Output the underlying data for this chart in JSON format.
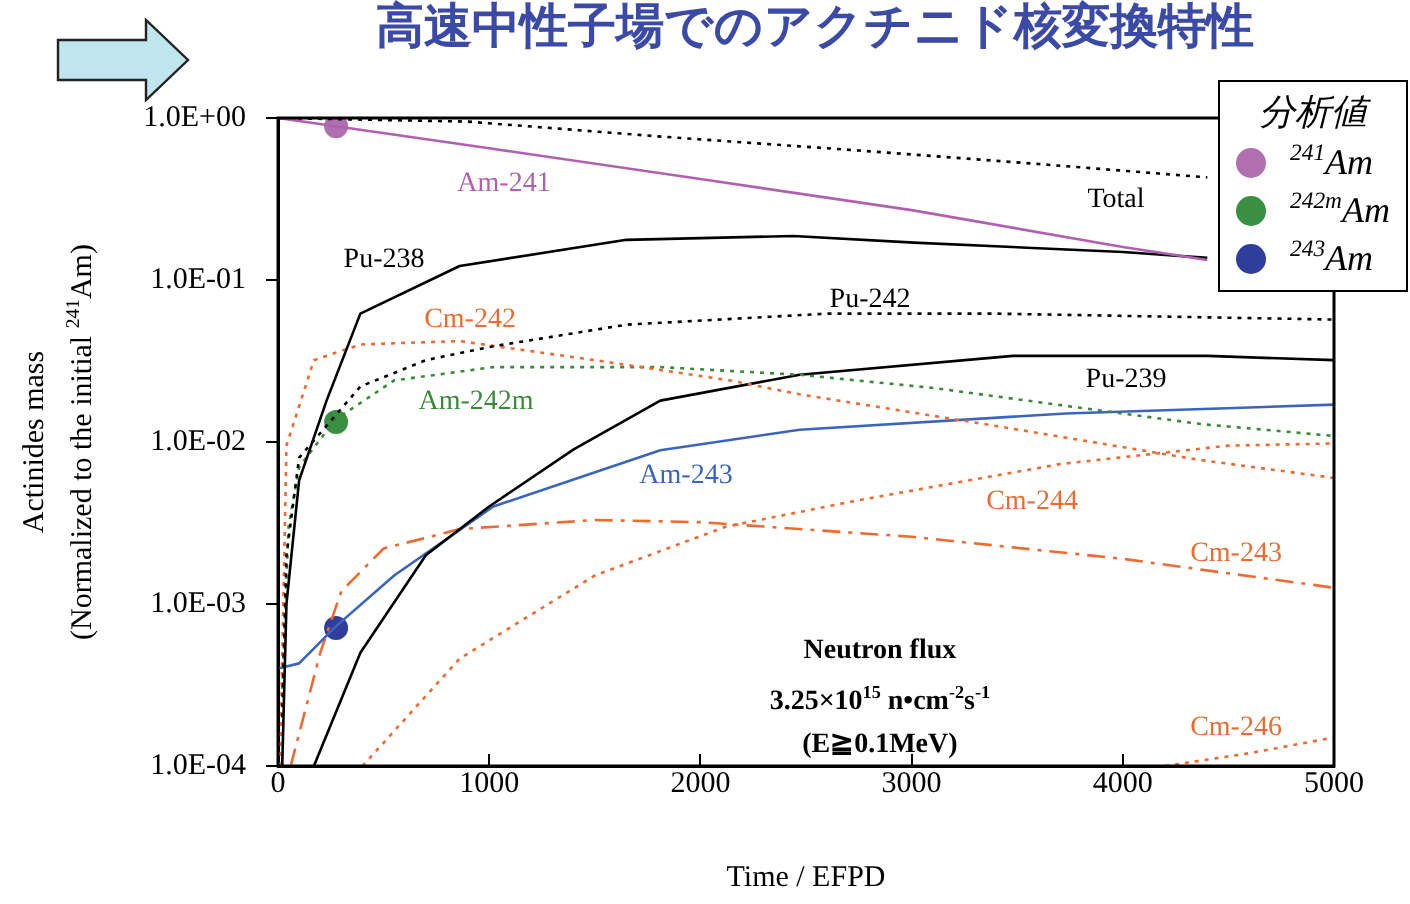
{
  "chart_data": {
    "type": "line",
    "title": "高速中性子場でのアクチニド核変換特性",
    "xlabel": "Time / EFPD",
    "ylabel": "Actinides mass\n(Normalized to the initial $^{241}$Am)",
    "legend_title": "分析値",
    "legend": "top right",
    "log": "y",
    "xlim": [
      0,
      5000
    ],
    "xticks": [
      0,
      1000,
      2000,
      3000,
      4000,
      5000
    ],
    "ylim": [
      0.0001,
      1
    ],
    "yticks": [
      {
        "value": 0.0001,
        "label": "1.0E-04"
      },
      {
        "value": 0.001,
        "label": "1.0E-03"
      },
      {
        "value": 0.01,
        "label": "1.0E-02"
      },
      {
        "value": 0.1,
        "label": "1.0E-01"
      },
      {
        "value": 1,
        "label": "1.0E+00"
      }
    ],
    "series": [
      {
        "name": "Am-241",
        "color": "#b060b0",
        "line_style": "solid",
        "x": [
          0,
          1000,
          2000,
          3000,
          4000,
          4400
        ],
        "values": [
          1.0,
          0.65,
          0.42,
          0.27,
          0.16,
          0.133
        ]
      },
      {
        "name": "Total",
        "color": "#000000",
        "line_style": "dotted",
        "x": [
          0,
          900,
          1800,
          2750,
          3600,
          4400
        ],
        "values": [
          1.0,
          0.95,
          0.77,
          0.63,
          0.52,
          0.43
        ]
      },
      {
        "name": "Pu-238",
        "color": "#000000",
        "line_style": "solid",
        "x": [
          20,
          40,
          100,
          230,
          390,
          860,
          1650,
          2440,
          3010,
          4000,
          4400
        ],
        "values": [
          0.0001,
          0.001,
          0.0058,
          0.018,
          0.062,
          0.122,
          0.177,
          0.187,
          0.17,
          0.149,
          0.137
        ]
      },
      {
        "name": "Pu-242",
        "color": "#000000",
        "line_style": "dotted",
        "x": [
          20,
          40,
          100,
          280,
          390,
          700,
          1020,
          1650,
          2600,
          3400,
          5000
        ],
        "values": [
          0.0002,
          0.002,
          0.008,
          0.015,
          0.022,
          0.032,
          0.039,
          0.053,
          0.062,
          0.062,
          0.057
        ]
      },
      {
        "name": "Cm-242",
        "color": "#f06a30",
        "line_style": "dotted",
        "x": [
          10,
          40,
          170,
          390,
          860,
          1500,
          2140,
          2470,
          3410,
          4350,
          5000
        ],
        "values": [
          0.0001,
          0.0095,
          0.032,
          0.04,
          0.042,
          0.032,
          0.024,
          0.0197,
          0.0125,
          0.0078,
          0.006
        ]
      },
      {
        "name": "Am-242m",
        "color": "#3a8a3a",
        "line_style": "dotted",
        "x": [
          20,
          50,
          100,
          270,
          550,
          1020,
          1810,
          2470,
          3110,
          4370,
          5000
        ],
        "values": [
          0.0003,
          0.003,
          0.007,
          0.0137,
          0.024,
          0.029,
          0.029,
          0.026,
          0.0215,
          0.0129,
          0.0109
        ]
      },
      {
        "name": "Pu-239",
        "color": "#000000",
        "line_style": "solid",
        "x": [
          170,
          390,
          700,
          1000,
          1400,
          1810,
          2470,
          3480,
          4400,
          5000
        ],
        "values": [
          0.0001,
          0.0005,
          0.002,
          0.004,
          0.009,
          0.018,
          0.026,
          0.034,
          0.034,
          0.032
        ]
      },
      {
        "name": "Am-243",
        "color": "#3a64c0",
        "line_style": "solid",
        "x": [
          0,
          100,
          270,
          550,
          1020,
          1810,
          2470,
          3730,
          5000
        ],
        "values": [
          0.0004,
          0.00043,
          0.00072,
          0.0015,
          0.004,
          0.0089,
          0.0119,
          0.015,
          0.017
        ]
      },
      {
        "name": "Cm-244",
        "color": "#f06a30",
        "line_style": "dotted",
        "x": [
          400,
          860,
          1500,
          2120,
          2760,
          3700,
          4500,
          5000
        ],
        "values": [
          0.0001,
          0.00046,
          0.0015,
          0.003,
          0.0044,
          0.0073,
          0.0095,
          0.0098
        ]
      },
      {
        "name": "Cm-243",
        "color": "#f06a30",
        "line_style": "dashed",
        "x": [
          60,
          200,
          300,
          500,
          860,
          1500,
          2000,
          3000,
          4000,
          5000
        ],
        "values": [
          0.0001,
          0.0005,
          0.0012,
          0.0022,
          0.0029,
          0.0033,
          0.0032,
          0.0026,
          0.0019,
          0.00126
        ]
      },
      {
        "name": "Cm-246",
        "color": "#f06a30",
        "line_style": "dotted",
        "x": [
          4200,
          4600,
          5000
        ],
        "values": [
          0.0001,
          0.00012,
          0.00015
        ]
      },
      {
        "type": "scatter",
        "marker": "circle",
        "name": "$^{241}$Am",
        "color": "#b070b0",
        "x": [
          275
        ],
        "values": [
          0.89
        ]
      },
      {
        "type": "scatter",
        "marker": "circle",
        "name": "$^{242m}$Am",
        "color": "#3a9040",
        "x": [
          275
        ],
        "values": [
          0.0133
        ]
      },
      {
        "type": "scatter",
        "marker": "circle",
        "name": "$^{243}$Am",
        "color": "#2e3e9a",
        "x": [
          275
        ],
        "values": [
          0.00071
        ]
      }
    ],
    "annotations": [
      "Neutron flux",
      "3.25×10$^{15}$ n•cm$^{-2}$s$^{-1}$",
      "(E≧0.1MeV)"
    ]
  }
}
